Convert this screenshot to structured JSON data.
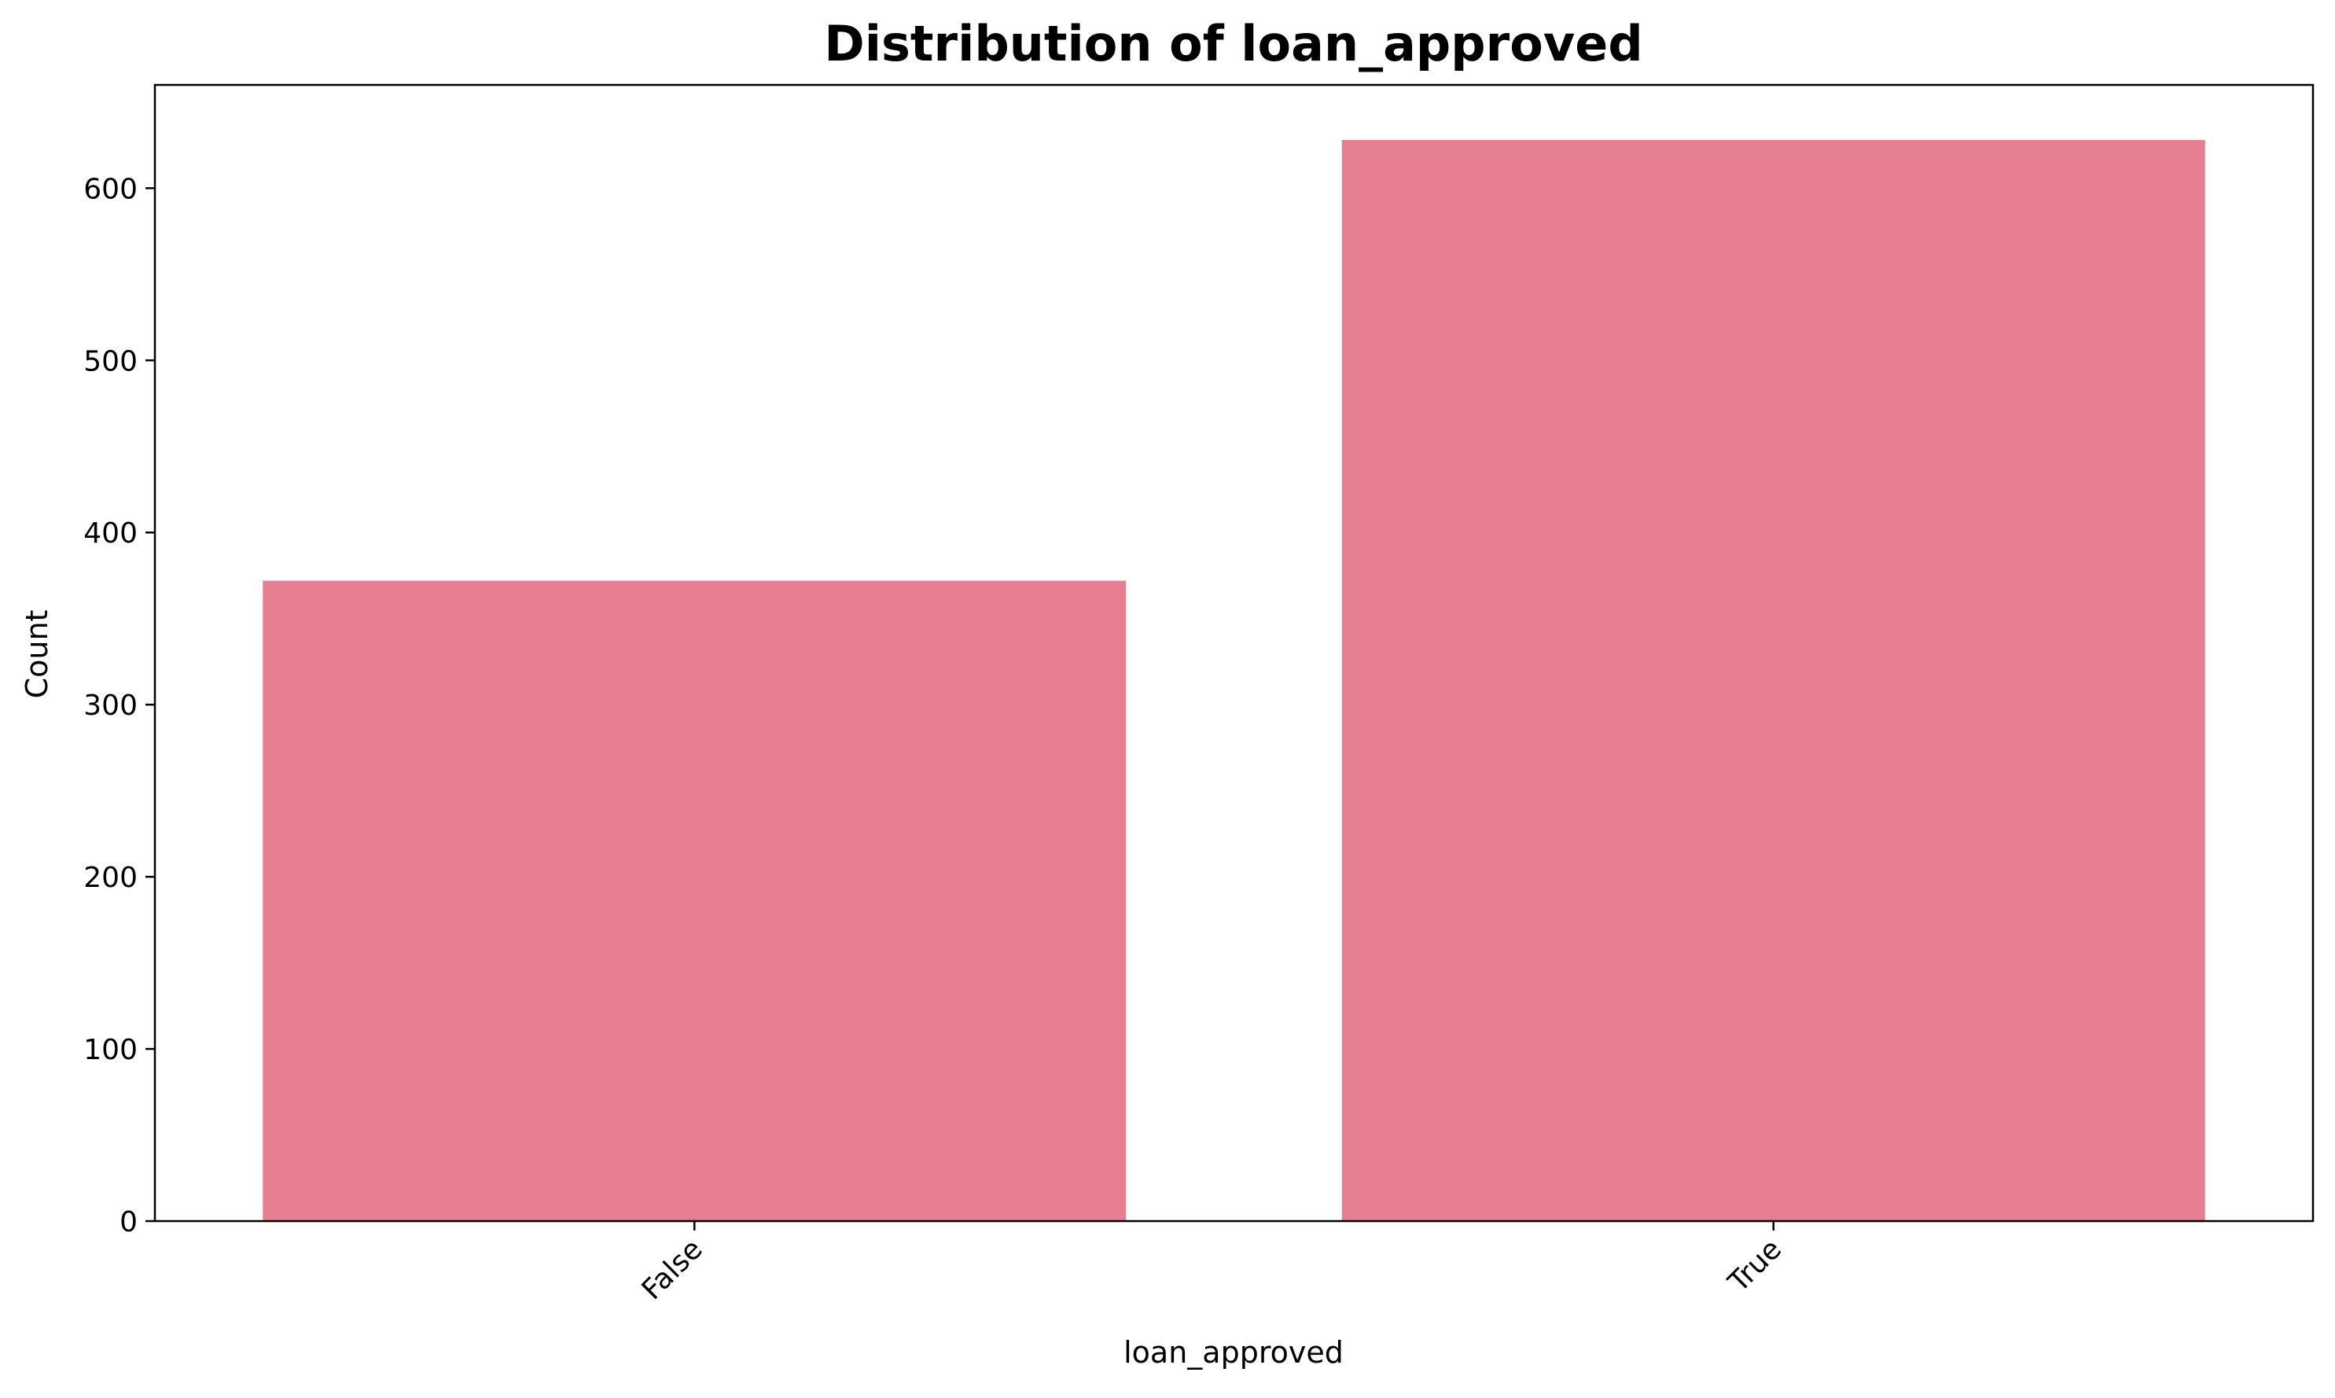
{
  "chart_data": {
    "type": "bar",
    "title": "Distribution of loan_approved",
    "xlabel": "loan_approved",
    "ylabel": "Count",
    "categories": [
      "False",
      "True"
    ],
    "values": [
      372,
      628
    ],
    "ylim": [
      0,
      660
    ],
    "yticks": [
      0,
      100,
      200,
      300,
      400,
      500,
      600
    ],
    "xtick_rotation": 45,
    "grid": false,
    "legend": false,
    "bar_color": "#e67f91"
  }
}
